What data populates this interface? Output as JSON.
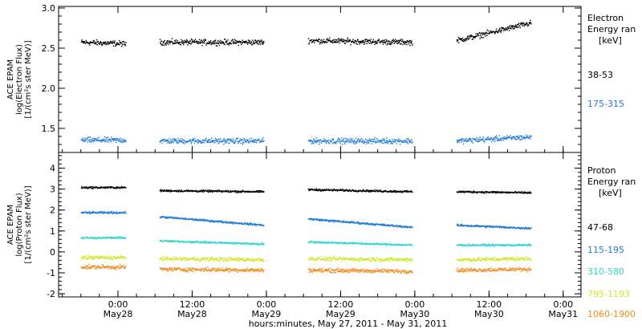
{
  "chart_data": [
    {
      "type": "scatter",
      "panel": "electron",
      "ylabel_lines": [
        "ACE EPAM",
        "log(Electron Flux)",
        "[1/(cm²s ster MeV)]"
      ],
      "ylim": [
        1.2,
        3.02
      ],
      "yticks": [
        1.5,
        2.0,
        2.5,
        3.0
      ],
      "ytick_labels": [
        "1.5",
        "2.0",
        "2.5",
        "3.0"
      ],
      "legend_title": [
        "Electron",
        "Energy ran",
        "[keV]"
      ],
      "series": [
        {
          "name": "38-53",
          "color": "#000000",
          "segments": [
            {
              "x": [
                -0.25,
                0.05
              ],
              "y": [
                2.58,
                2.56
              ]
            },
            {
              "x": [
                0.28,
                0.98
              ],
              "y": [
                2.58,
                2.58
              ]
            },
            {
              "x": [
                1.28,
                1.98
              ],
              "y": [
                2.6,
                2.58
              ]
            },
            {
              "x": [
                2.28,
                2.78
              ],
              "y": [
                2.6,
                2.82
              ]
            }
          ]
        },
        {
          "name": "175-315",
          "color": "#1f7ad6",
          "segments": [
            {
              "x": [
                -0.25,
                0.05
              ],
              "y": [
                1.36,
                1.36
              ]
            },
            {
              "x": [
                0.28,
                0.98
              ],
              "y": [
                1.35,
                1.35
              ]
            },
            {
              "x": [
                1.28,
                1.98
              ],
              "y": [
                1.35,
                1.35
              ]
            },
            {
              "x": [
                2.28,
                2.78
              ],
              "y": [
                1.35,
                1.4
              ]
            }
          ]
        }
      ]
    },
    {
      "type": "scatter",
      "panel": "proton",
      "ylabel_lines": [
        "ACE EPAM",
        "log(Proton Flux)",
        "[1/(cm²s ster MeV)]"
      ],
      "ylim": [
        -2.15,
        4.75
      ],
      "yticks": [
        -2,
        -1,
        0,
        1,
        2,
        3,
        4
      ],
      "ytick_labels": [
        "-2",
        "-1",
        "0",
        "1",
        "2",
        "3",
        "4"
      ],
      "legend_title": [
        "Proton",
        "Energy ran",
        "[keV]"
      ],
      "series": [
        {
          "name": "47-68",
          "color": "#000000",
          "segments": [
            {
              "x": [
                -0.25,
                0.05
              ],
              "y": [
                3.1,
                3.1
              ]
            },
            {
              "x": [
                0.28,
                0.98
              ],
              "y": [
                2.95,
                2.9
              ]
            },
            {
              "x": [
                1.28,
                1.98
              ],
              "y": [
                3.0,
                2.9
              ]
            },
            {
              "x": [
                2.28,
                2.78
              ],
              "y": [
                2.9,
                2.85
              ]
            }
          ]
        },
        {
          "name": "115-195",
          "color": "#1f7ad6",
          "segments": [
            {
              "x": [
                -0.25,
                0.05
              ],
              "y": [
                1.9,
                1.9
              ]
            },
            {
              "x": [
                0.28,
                0.98
              ],
              "y": [
                1.7,
                1.3
              ]
            },
            {
              "x": [
                1.28,
                1.98
              ],
              "y": [
                1.6,
                1.2
              ]
            },
            {
              "x": [
                2.28,
                2.78
              ],
              "y": [
                1.3,
                1.15
              ]
            }
          ]
        },
        {
          "name": "310-580",
          "color": "#33d6cc",
          "segments": [
            {
              "x": [
                -0.25,
                0.05
              ],
              "y": [
                0.7,
                0.7
              ]
            },
            {
              "x": [
                0.28,
                0.98
              ],
              "y": [
                0.55,
                0.4
              ]
            },
            {
              "x": [
                1.28,
                1.98
              ],
              "y": [
                0.5,
                0.35
              ]
            },
            {
              "x": [
                2.28,
                2.78
              ],
              "y": [
                0.35,
                0.35
              ]
            }
          ]
        },
        {
          "name": "795-1193",
          "color": "#cfe62a",
          "segments": [
            {
              "x": [
                -0.25,
                0.05
              ],
              "y": [
                -0.25,
                -0.25
              ]
            },
            {
              "x": [
                0.28,
                0.98
              ],
              "y": [
                -0.3,
                -0.35
              ]
            },
            {
              "x": [
                1.28,
                1.98
              ],
              "y": [
                -0.3,
                -0.35
              ]
            },
            {
              "x": [
                2.28,
                2.78
              ],
              "y": [
                -0.35,
                -0.3
              ]
            }
          ]
        },
        {
          "name": "1060-1900",
          "color": "#f08a1e",
          "segments": [
            {
              "x": [
                -0.25,
                0.05
              ],
              "y": [
                -0.7,
                -0.7
              ]
            },
            {
              "x": [
                0.28,
                0.98
              ],
              "y": [
                -0.8,
                -0.85
              ]
            },
            {
              "x": [
                1.28,
                1.98
              ],
              "y": [
                -0.85,
                -0.9
              ]
            },
            {
              "x": [
                2.28,
                2.78
              ],
              "y": [
                -0.85,
                -0.8
              ]
            }
          ]
        }
      ]
    }
  ],
  "x_axis": {
    "xlim": [
      -0.4,
      3.12
    ],
    "ticks": [
      0,
      0.5,
      1,
      1.5,
      2,
      2.5,
      3
    ],
    "tick_labels": [
      [
        "0:00",
        "May28"
      ],
      [
        "12:00",
        "May28"
      ],
      [
        "0:00",
        "May29"
      ],
      [
        "12:00",
        "May29"
      ],
      [
        "0:00",
        "May30"
      ],
      [
        "12:00",
        "May30"
      ],
      [
        "0:00",
        "May31"
      ]
    ],
    "xlabel": "hours:minutes, May 27, 2011 - May 31, 2011"
  }
}
